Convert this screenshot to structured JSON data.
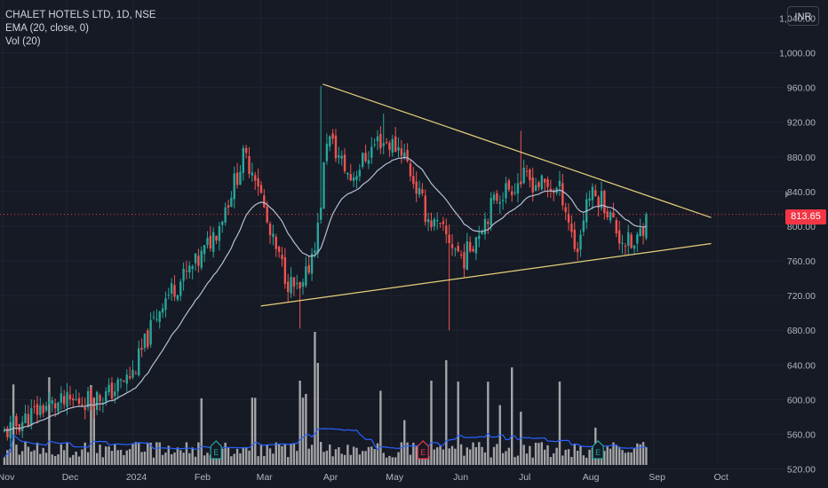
{
  "legend": {
    "symbol": "CHALET HOTELS LTD, 1D, NSE",
    "ema": "EMA (20, close, 0)",
    "vol": "Vol (20)"
  },
  "currency_button": "INR",
  "last_price_label": "813.65",
  "colors": {
    "background": "#161a25",
    "up": "#26a69a",
    "down": "#ef5350",
    "ema": "#b2c1d6",
    "trendline": "#e6d07a",
    "volume": "#bdbdbd",
    "volume_ma": "#2962ff",
    "last_price": "#f23645"
  },
  "chart_data": {
    "type": "candlestick",
    "series": [
      {
        "name": "CHALET HOTELS LTD, 1D, NSE",
        "type": "candlestick"
      },
      {
        "name": "EMA (20, close, 0)",
        "type": "line"
      },
      {
        "name": "Vol (20)",
        "type": "bar"
      }
    ],
    "y_ticks": [
      520,
      560,
      600,
      640,
      680,
      720,
      760,
      800,
      840,
      880,
      920,
      960,
      1000,
      1040
    ],
    "y_tick_labels": [
      "520.00",
      "560.00",
      "600.00",
      "640.00",
      "680.00",
      "720.00",
      "760.00",
      "800.00",
      "840.00",
      "880.00",
      "920.00",
      "960.00",
      "1,000.00",
      "1,040.00"
    ],
    "ylim": [
      498,
      1061
    ],
    "x_tick_labels": [
      "Nov",
      "Dec",
      "2024",
      "Feb",
      "Mar",
      "Apr",
      "May",
      "Jun",
      "Jul",
      "Aug",
      "Sep",
      "Oct"
    ],
    "last_price": 813.65,
    "price_path": [
      [
        "2023-11-01",
        560
      ],
      [
        "2023-11-20",
        592
      ],
      [
        "2023-12-01",
        596
      ],
      [
        "2023-12-20",
        605
      ],
      [
        "2024-01-01",
        630
      ],
      [
        "2024-01-15",
        715
      ],
      [
        "2024-02-01",
        760
      ],
      [
        "2024-02-10",
        800
      ],
      [
        "2024-02-22",
        880
      ],
      [
        "2024-02-28",
        860
      ],
      [
        "2024-03-05",
        790
      ],
      [
        "2024-03-14",
        735
      ],
      [
        "2024-03-20",
        720
      ],
      [
        "2024-03-28",
        800
      ],
      [
        "2024-04-01",
        905
      ],
      [
        "2024-04-12",
        855
      ],
      [
        "2024-04-25",
        900
      ],
      [
        "2024-05-06",
        890
      ],
      [
        "2024-05-18",
        810
      ],
      [
        "2024-05-28",
        785
      ],
      [
        "2024-06-04",
        762
      ],
      [
        "2024-06-12",
        800
      ],
      [
        "2024-06-20",
        836
      ],
      [
        "2024-07-02",
        855
      ],
      [
        "2024-07-10",
        848
      ],
      [
        "2024-07-20",
        840
      ],
      [
        "2024-07-27",
        768
      ],
      [
        "2024-08-01",
        836
      ],
      [
        "2024-08-08",
        832
      ],
      [
        "2024-08-16",
        788
      ],
      [
        "2024-08-23",
        775
      ],
      [
        "2024-08-29",
        813.65
      ]
    ],
    "trendlines": [
      {
        "from": [
          "2024-03-01",
          708
        ],
        "to": [
          "2024-09-28",
          780
        ]
      },
      {
        "from": [
          "2024-03-30",
          964
        ],
        "to": [
          "2024-09-28",
          810
        ]
      }
    ],
    "event_markers": [
      {
        "label": "E",
        "date": "2024-02-09"
      },
      {
        "label": "E",
        "date": "2024-05-16"
      },
      {
        "label": "E",
        "date": "2024-08-06"
      }
    ]
  }
}
